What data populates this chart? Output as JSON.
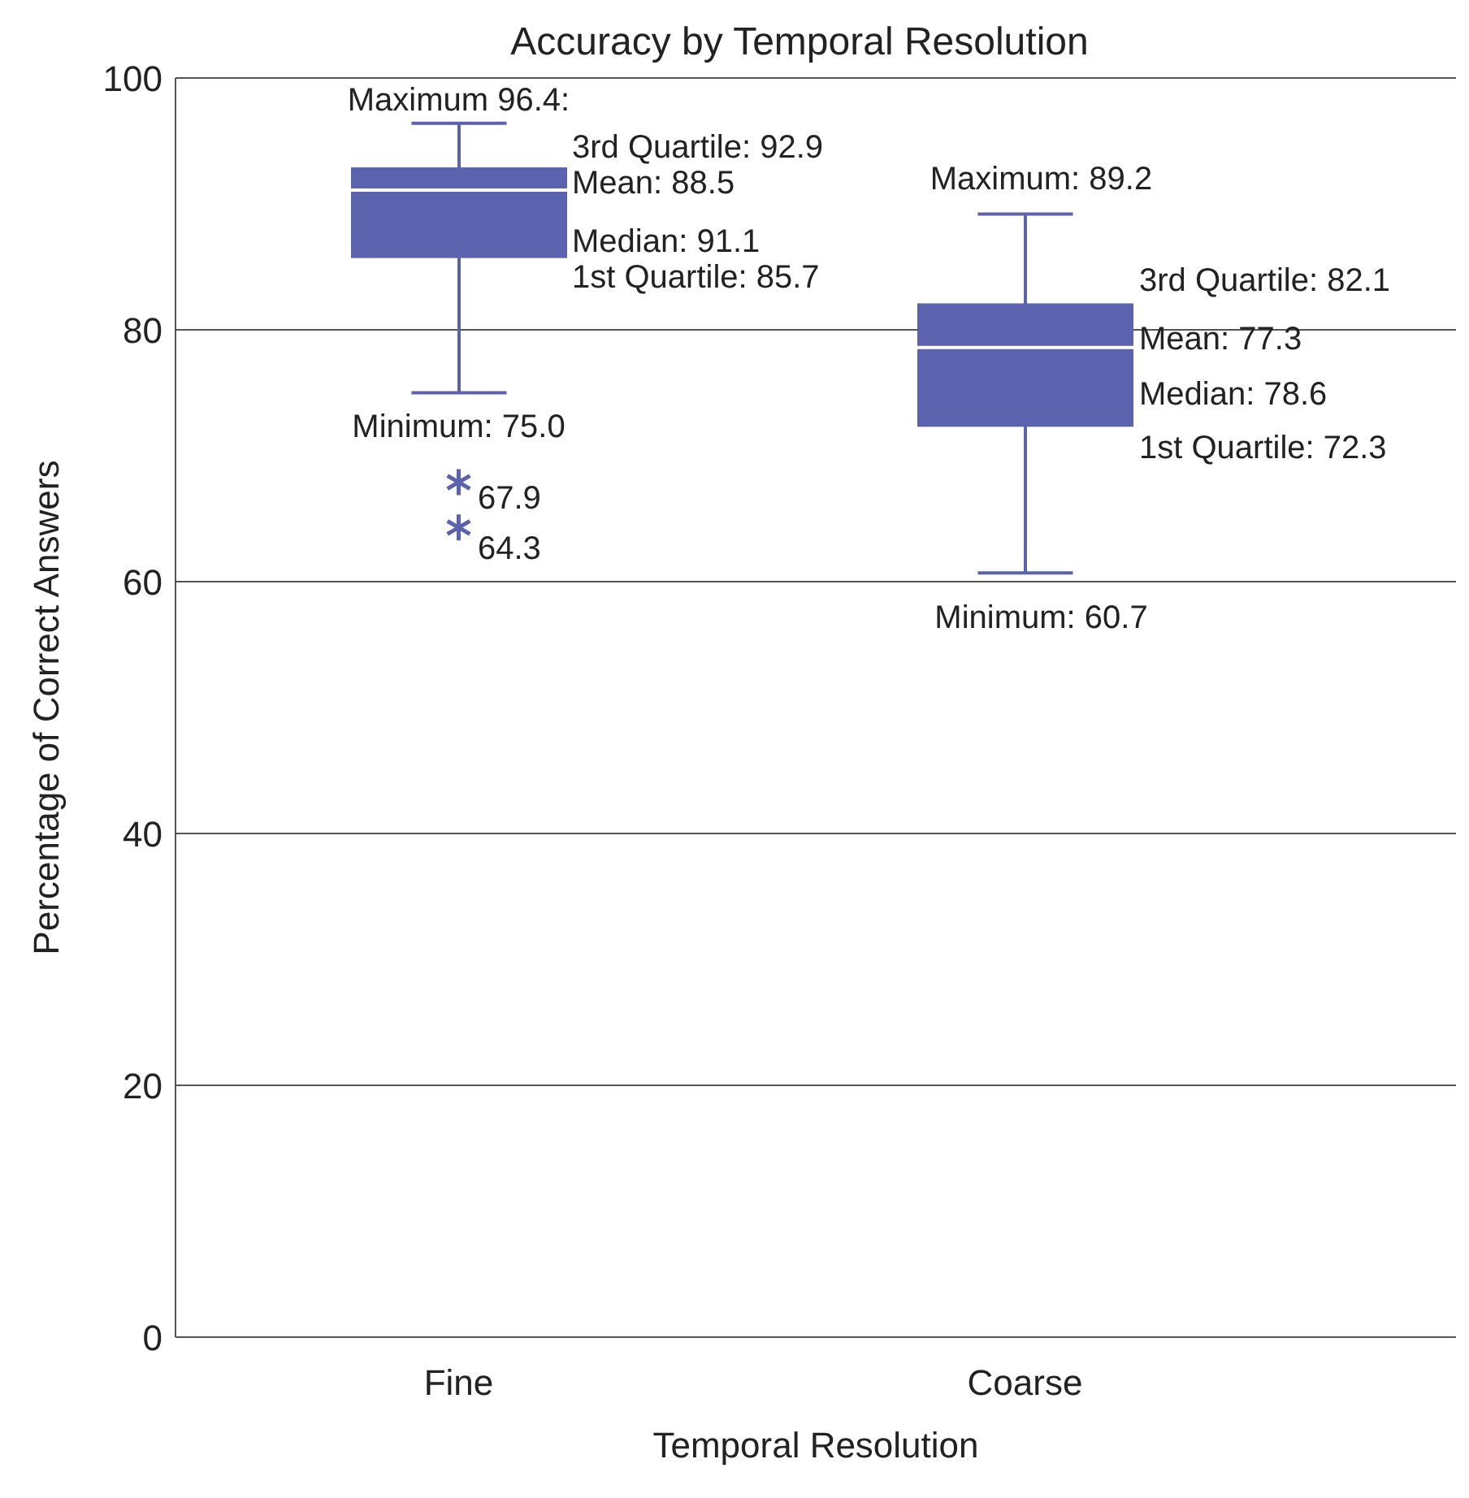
{
  "chart_data": {
    "type": "box",
    "title": "Accuracy by Temporal Resolution",
    "xlabel": "Temporal Resolution",
    "ylabel": "Percentage of Correct Answers",
    "categories": [
      "Fine",
      "Coarse"
    ],
    "boxes": [
      {
        "low": 75.0,
        "q1": 85.7,
        "median": 91.1,
        "q3": 92.9,
        "high": 96.4,
        "outliers": [
          67.9,
          64.3
        ]
      },
      {
        "low": 60.7,
        "q1": 72.3,
        "median": 78.6,
        "q3": 82.1,
        "high": 89.2
      }
    ],
    "color": "#5b62ae",
    "marker": "star",
    "ylim": [
      0,
      100
    ],
    "yticks": [
      0,
      20,
      40,
      60,
      80,
      100
    ],
    "grid": "y",
    "annotations": [
      {
        "text": "Maximum 96.4:",
        "x": "Fine",
        "y": 96.4
      },
      "3rd Quartile: 92.9",
      "Mean: 88.5",
      "Median: 91.1",
      "1st Quartile: 85.7",
      {
        "text": "Minimum: 75.0",
        "x": "Fine",
        "y": 75.0
      },
      "67.9",
      "64.3",
      {
        "text": "Maximum: 89.2",
        "x": "Coarse",
        "y": 89.2
      },
      "3rd Quartile: 82.1",
      "Mean: 77.3",
      "Median: 78.6",
      "1st Quartile: 72.3",
      {
        "text": "Minimum: 60.7",
        "x": "Coarse",
        "y": 60.7
      }
    ]
  }
}
